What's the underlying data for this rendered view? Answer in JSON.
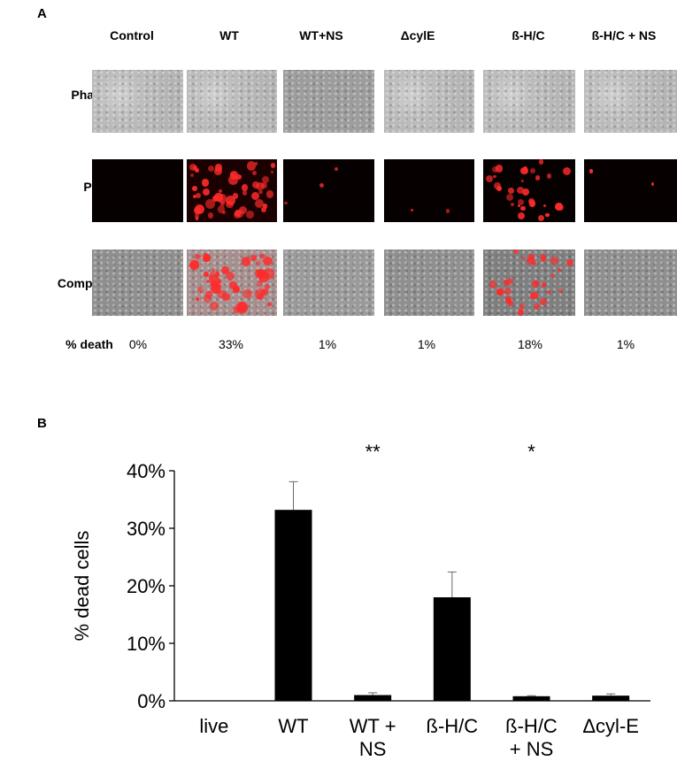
{
  "figure": {
    "panel_a": {
      "letter": "A",
      "columns": [
        "Control",
        "WT",
        "WT+NS",
        "ΔcylE",
        "ß-H/C",
        "ß-H/C + NS"
      ],
      "rows": [
        "Phase",
        "PI",
        "Composite"
      ],
      "death_label": "% death",
      "death_values": [
        "0%",
        "33%",
        "1%",
        "1%",
        "18%",
        "1%"
      ]
    },
    "panel_b": {
      "letter": "B"
    }
  },
  "chart_data": {
    "type": "bar",
    "categories": [
      [
        "live"
      ],
      [
        "WT"
      ],
      [
        "WT +",
        "NS"
      ],
      [
        "ß-H/C"
      ],
      [
        "ß-H/C",
        "+ NS"
      ],
      [
        "Δcyl-E"
      ]
    ],
    "values": [
      0,
      33.2,
      1.0,
      18.0,
      0.8,
      0.9
    ],
    "errors": [
      0,
      4.9,
      0.4,
      4.4,
      0.1,
      0.3
    ],
    "significance": [
      "",
      "",
      "**",
      "",
      "*",
      ""
    ],
    "ylabel": "% dead cells",
    "ylim": [
      0,
      40
    ],
    "yticks": [
      "0%",
      "10%",
      "20%",
      "30%",
      "40%"
    ],
    "bar_color": "#000000",
    "grid": false,
    "legend": "none"
  }
}
